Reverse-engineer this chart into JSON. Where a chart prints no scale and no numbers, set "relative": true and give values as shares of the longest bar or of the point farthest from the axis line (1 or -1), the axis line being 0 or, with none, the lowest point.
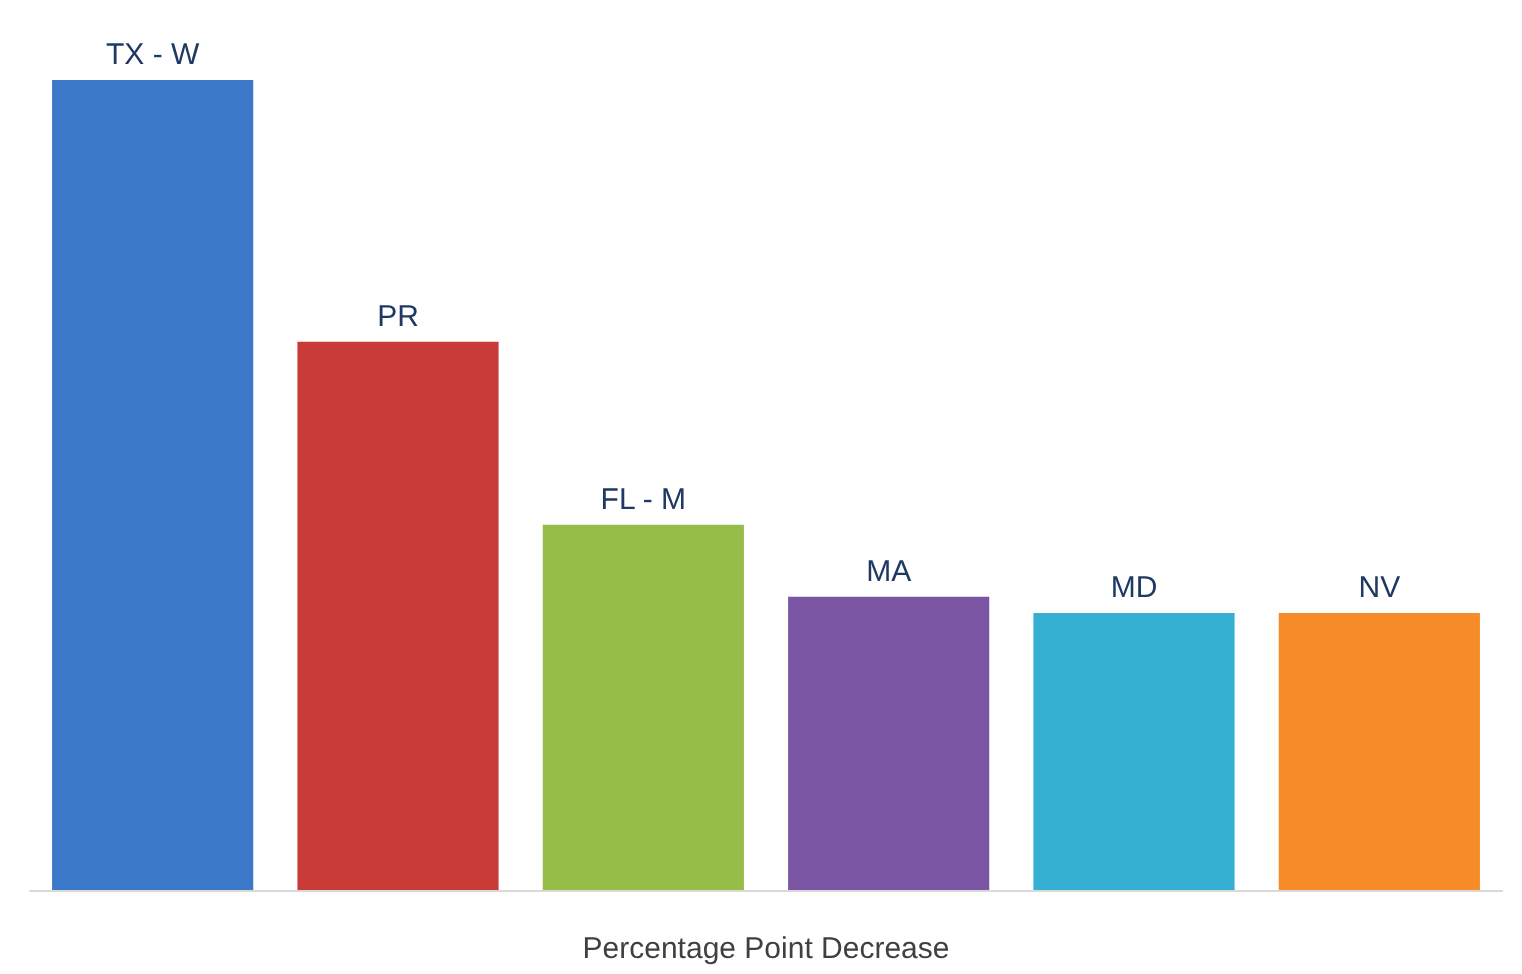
{
  "chart_data": {
    "type": "bar",
    "relative": true,
    "xlabel": "Percentage Point Decrease",
    "categories": [
      "TX - W",
      "PR",
      "FL - M",
      "MA",
      "MD",
      "NV"
    ],
    "values": [
      1,
      0.677,
      0.451,
      0.362,
      0.342,
      0.342
    ],
    "colors": [
      "#3b78c8",
      "#c93b37",
      "#95bd48",
      "#7b56a5",
      "#35b0d2",
      "#f68b27"
    ]
  }
}
